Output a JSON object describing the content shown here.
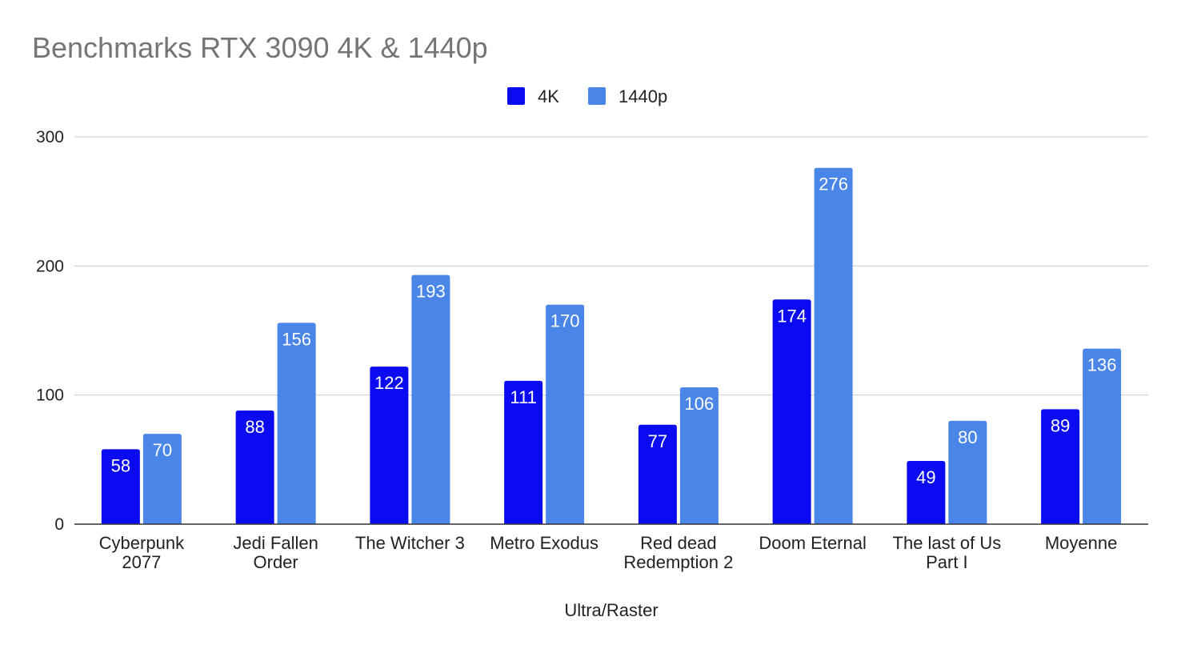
{
  "chart_data": {
    "type": "bar",
    "title": "Benchmarks RTX 3090 4K & 1440p",
    "xlabel": "Ultra/Raster",
    "ylabel": "",
    "ylim": [
      0,
      300
    ],
    "yticks": [
      0,
      100,
      200,
      300
    ],
    "grid": true,
    "legend_position": "top-center",
    "categories": [
      [
        "Cyberpunk",
        "2077"
      ],
      [
        "Jedi Fallen",
        "Order"
      ],
      [
        "The Witcher 3"
      ],
      [
        "Metro Exodus"
      ],
      [
        "Red dead",
        "Redemption 2"
      ],
      [
        "Doom Eternal"
      ],
      [
        "The last of Us",
        "Part I"
      ],
      [
        "Moyenne"
      ]
    ],
    "series": [
      {
        "name": "4K",
        "color": "#0b0bf2",
        "values": [
          58,
          88,
          122,
          111,
          77,
          174,
          49,
          89
        ]
      },
      {
        "name": "1440p",
        "color": "#4a86e8",
        "values": [
          70,
          156,
          193,
          170,
          106,
          276,
          80,
          136
        ]
      }
    ],
    "data_labels": true
  }
}
